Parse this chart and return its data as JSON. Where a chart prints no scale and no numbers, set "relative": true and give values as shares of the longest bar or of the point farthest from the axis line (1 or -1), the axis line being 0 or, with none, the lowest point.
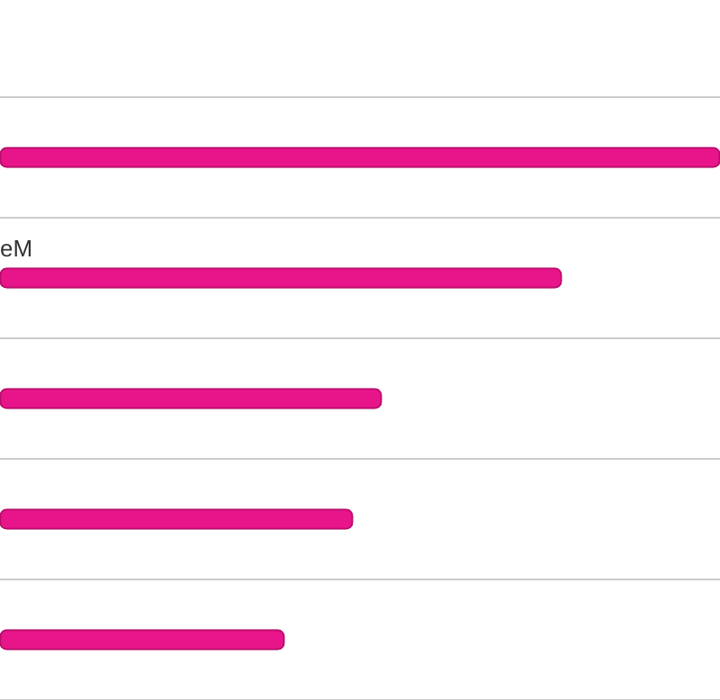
{
  "chart_data": {
    "type": "bar",
    "orientation": "horizontal",
    "relative": true,
    "categories": [
      null,
      "eM",
      null,
      null,
      null
    ],
    "values": [
      1,
      0.78,
      0.53,
      0.49,
      0.395
    ],
    "color": "#e8158a",
    "grid": "y",
    "legend": false
  }
}
